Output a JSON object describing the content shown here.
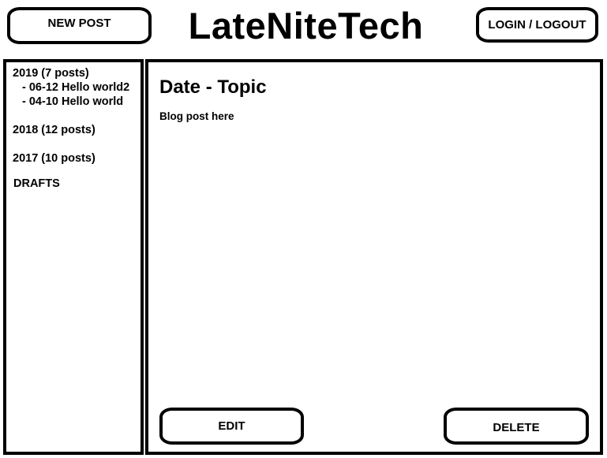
{
  "header": {
    "new_post_label": "NEW POST",
    "site_title": "LateNiteTech",
    "login_label": "LOGIN / LOGOUT"
  },
  "sidebar": {
    "years": [
      {
        "label": "2019 (7 posts)",
        "posts": [
          {
            "label": "- 06-12 Hello world2"
          },
          {
            "label": "- 04-10 Hello world"
          }
        ]
      },
      {
        "label": "2018 (12 posts)"
      },
      {
        "label": "2017 (10 posts)"
      }
    ],
    "drafts_label": "DRAFTS"
  },
  "main": {
    "post_title": "Date - Topic",
    "post_body": "Blog post here",
    "edit_label": "EDIT",
    "delete_label": "DELETE"
  }
}
